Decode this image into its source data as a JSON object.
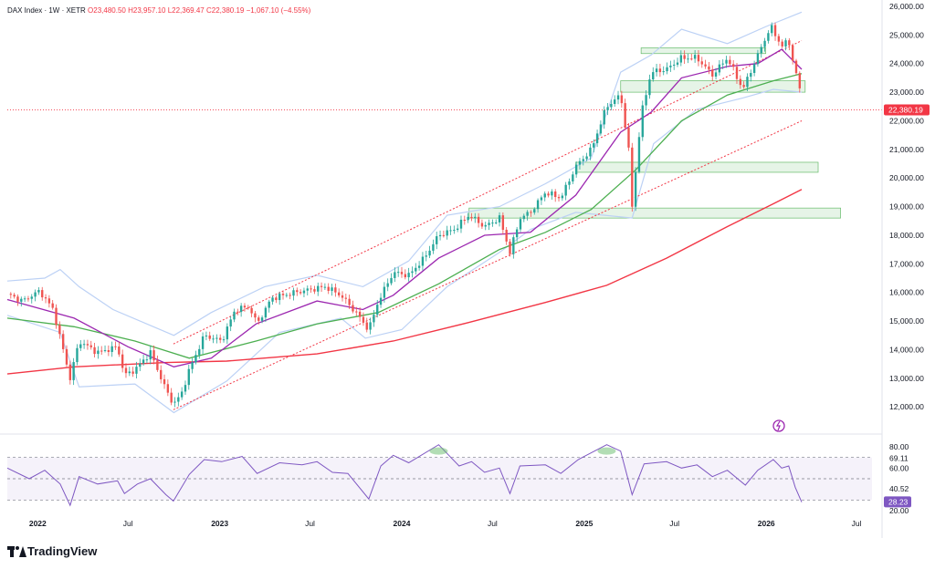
{
  "header": {
    "symbol": "DAX Index",
    "interval": "1W",
    "exchange": "XETR",
    "open": "O23,480.50",
    "high": "H23,957.10",
    "low": "L22,369.47",
    "close": "C22,380.19",
    "change": "−1,067.10 (−4.55%)"
  },
  "brand": {
    "name": "TradingView"
  },
  "colors": {
    "up": "#26a69a",
    "down": "#ef5350",
    "ema_fast": "#9c27b0",
    "ema_mid": "#4caf50",
    "ema_slow": "#f23645",
    "bollinger": "#bcd1f5",
    "channel": "#f23645",
    "zone": "#c8e6c9",
    "rsi_line": "#7e57c2",
    "last_price_bg": "#f23645",
    "rsi_badge_bg": "#7e57c2",
    "alert_icon": "#9c27b0"
  },
  "chart_data": {
    "type": "candlestick",
    "symbol": "DAX Index",
    "interval": "1W",
    "x_range": [
      "2021-11-01",
      "2026-08-01"
    ],
    "x_ticks": [
      {
        "date": "2022-01-01",
        "label": "2022",
        "bold": true
      },
      {
        "date": "2022-07-01",
        "label": "Jul",
        "bold": false
      },
      {
        "date": "2023-01-01",
        "label": "2023",
        "bold": true
      },
      {
        "date": "2023-07-01",
        "label": "Jul",
        "bold": false
      },
      {
        "date": "2024-01-01",
        "label": "2024",
        "bold": true
      },
      {
        "date": "2024-07-01",
        "label": "Jul",
        "bold": false
      },
      {
        "date": "2025-01-01",
        "label": "2025",
        "bold": true
      },
      {
        "date": "2025-07-01",
        "label": "Jul",
        "bold": false
      },
      {
        "date": "2026-01-01",
        "label": "2026",
        "bold": true
      },
      {
        "date": "2026-07-01",
        "label": "Jul",
        "bold": false
      }
    ],
    "price_axis": {
      "range": [
        11400,
        26000
      ],
      "ticks": [
        "26,000.00",
        "25,000.00",
        "24,000.00",
        "23,000.00",
        "22,000.00",
        "21,000.00",
        "20,000.00",
        "19,000.00",
        "18,000.00",
        "17,000.00",
        "16,000.00",
        "15,000.00",
        "14,000.00",
        "13,000.00",
        "12,000.00"
      ],
      "tick_values": [
        26000,
        25000,
        24000,
        23000,
        22000,
        21000,
        20000,
        19000,
        18000,
        17000,
        16000,
        15000,
        14000,
        13000,
        12000
      ],
      "last_price": 22380.19,
      "last_price_label": "22,380.19"
    },
    "close_path": [
      [
        "2021-11-01",
        15950
      ],
      [
        "2021-12-01",
        15700
      ],
      [
        "2022-01-05",
        16050
      ],
      [
        "2022-02-01",
        15400
      ],
      [
        "2022-03-07",
        13000
      ],
      [
        "2022-03-25",
        14300
      ],
      [
        "2022-05-01",
        13900
      ],
      [
        "2022-06-10",
        14100
      ],
      [
        "2022-06-24",
        13100
      ],
      [
        "2022-07-15",
        13300
      ],
      [
        "2022-08-15",
        13900
      ],
      [
        "2022-09-15",
        12600
      ],
      [
        "2022-09-30",
        12100
      ],
      [
        "2022-10-15",
        12400
      ],
      [
        "2022-11-01",
        13300
      ],
      [
        "2022-12-01",
        14500
      ],
      [
        "2023-01-05",
        14300
      ],
      [
        "2023-02-01",
        15400
      ],
      [
        "2023-03-01",
        15500
      ],
      [
        "2023-03-17",
        14900
      ],
      [
        "2023-04-15",
        15800
      ],
      [
        "2023-06-01",
        16000
      ],
      [
        "2023-07-01",
        16100
      ],
      [
        "2023-08-01",
        16200
      ],
      [
        "2023-09-01",
        15900
      ],
      [
        "2023-10-01",
        15300
      ],
      [
        "2023-10-27",
        14700
      ],
      [
        "2023-11-15",
        15700
      ],
      [
        "2023-12-15",
        16700
      ],
      [
        "2024-01-15",
        16600
      ],
      [
        "2024-02-15",
        17200
      ],
      [
        "2024-03-15",
        18000
      ],
      [
        "2024-04-15",
        18200
      ],
      [
        "2024-05-15",
        18700
      ],
      [
        "2024-06-15",
        18300
      ],
      [
        "2024-07-15",
        18600
      ],
      [
        "2024-08-05",
        17400
      ],
      [
        "2024-08-25",
        18600
      ],
      [
        "2024-09-15",
        18800
      ],
      [
        "2024-10-15",
        19500
      ],
      [
        "2024-11-15",
        19300
      ],
      [
        "2024-12-15",
        20400
      ],
      [
        "2025-01-15",
        21000
      ],
      [
        "2025-02-15",
        22500
      ],
      [
        "2025-03-15",
        22900
      ],
      [
        "2025-04-04",
        20500
      ],
      [
        "2025-04-07",
        19000
      ],
      [
        "2025-04-25",
        22200
      ],
      [
        "2025-05-15",
        23700
      ],
      [
        "2025-06-15",
        23800
      ],
      [
        "2025-07-15",
        24200
      ],
      [
        "2025-08-15",
        24200
      ],
      [
        "2025-09-15",
        23600
      ],
      [
        "2025-10-15",
        24200
      ],
      [
        "2025-11-15",
        23100
      ],
      [
        "2025-12-15",
        24300
      ],
      [
        "2026-01-10",
        25300
      ],
      [
        "2026-02-01",
        24600
      ],
      [
        "2026-02-15",
        24800
      ],
      [
        "2026-02-28",
        23700
      ],
      [
        "2026-03-07",
        23450
      ],
      [
        "2026-03-13",
        22380
      ]
    ],
    "indicators": {
      "ema_fast": [
        [
          "2021-11-01",
          15750
        ],
        [
          "2022-03-15",
          15100
        ],
        [
          "2022-07-01",
          14100
        ],
        [
          "2022-10-01",
          13400
        ],
        [
          "2022-12-15",
          13700
        ],
        [
          "2023-03-15",
          14900
        ],
        [
          "2023-07-15",
          15700
        ],
        [
          "2023-10-15",
          15400
        ],
        [
          "2023-12-15",
          15900
        ],
        [
          "2024-03-15",
          17200
        ],
        [
          "2024-06-15",
          18000
        ],
        [
          "2024-09-15",
          18100
        ],
        [
          "2024-12-15",
          19400
        ],
        [
          "2025-03-15",
          21600
        ],
        [
          "2025-05-15",
          22300
        ],
        [
          "2025-07-15",
          23500
        ],
        [
          "2025-10-15",
          23900
        ],
        [
          "2025-12-15",
          24000
        ],
        [
          "2026-02-01",
          24500
        ],
        [
          "2026-03-13",
          23800
        ]
      ],
      "ema_mid": [
        [
          "2021-11-01",
          15100
        ],
        [
          "2022-03-15",
          14800
        ],
        [
          "2022-07-15",
          14300
        ],
        [
          "2022-11-01",
          13700
        ],
        [
          "2023-03-15",
          14300
        ],
        [
          "2023-07-15",
          14900
        ],
        [
          "2023-11-15",
          15300
        ],
        [
          "2024-03-15",
          16300
        ],
        [
          "2024-07-15",
          17500
        ],
        [
          "2024-10-15",
          18100
        ],
        [
          "2025-01-15",
          18900
        ],
        [
          "2025-04-15",
          20300
        ],
        [
          "2025-07-15",
          22000
        ],
        [
          "2025-10-15",
          22900
        ],
        [
          "2026-01-15",
          23400
        ],
        [
          "2026-03-13",
          23650
        ]
      ],
      "ema_slow": [
        [
          "2021-11-01",
          13150
        ],
        [
          "2022-03-15",
          13400
        ],
        [
          "2022-09-15",
          13550
        ],
        [
          "2023-01-15",
          13600
        ],
        [
          "2023-07-15",
          13850
        ],
        [
          "2023-12-15",
          14300
        ],
        [
          "2024-05-15",
          14950
        ],
        [
          "2024-10-15",
          15650
        ],
        [
          "2025-02-15",
          16250
        ],
        [
          "2025-06-15",
          17200
        ],
        [
          "2025-10-15",
          18300
        ],
        [
          "2026-01-15",
          19100
        ],
        [
          "2026-03-13",
          19600
        ]
      ],
      "bollinger_upper": [
        [
          "2021-11-01",
          16400
        ],
        [
          "2022-01-15",
          16500
        ],
        [
          "2022-02-15",
          16800
        ],
        [
          "2022-03-25",
          16200
        ],
        [
          "2022-06-01",
          15400
        ],
        [
          "2022-10-01",
          14500
        ],
        [
          "2022-12-15",
          15300
        ],
        [
          "2023-04-01",
          16200
        ],
        [
          "2023-07-15",
          16600
        ],
        [
          "2023-10-15",
          16200
        ],
        [
          "2024-01-15",
          17100
        ],
        [
          "2024-04-01",
          18700
        ],
        [
          "2024-07-15",
          19000
        ],
        [
          "2024-10-15",
          19800
        ],
        [
          "2025-01-15",
          20700
        ],
        [
          "2025-03-15",
          23700
        ],
        [
          "2025-05-15",
          24300
        ],
        [
          "2025-07-15",
          25200
        ],
        [
          "2025-10-15",
          24700
        ],
        [
          "2026-01-01",
          25300
        ],
        [
          "2026-03-13",
          25800
        ]
      ],
      "bollinger_lower": [
        [
          "2021-11-01",
          15200
        ],
        [
          "2022-02-15",
          14600
        ],
        [
          "2022-03-25",
          12700
        ],
        [
          "2022-07-15",
          12800
        ],
        [
          "2022-10-01",
          11800
        ],
        [
          "2023-01-15",
          12900
        ],
        [
          "2023-05-01",
          14600
        ],
        [
          "2023-09-01",
          15100
        ],
        [
          "2023-10-20",
          14400
        ],
        [
          "2024-01-01",
          14700
        ],
        [
          "2024-04-01",
          16200
        ],
        [
          "2024-07-15",
          17400
        ],
        [
          "2024-09-15",
          18200
        ],
        [
          "2024-12-15",
          18800
        ],
        [
          "2025-04-07",
          18600
        ],
        [
          "2025-05-20",
          21200
        ],
        [
          "2025-08-15",
          22400
        ],
        [
          "2025-11-15",
          22800
        ],
        [
          "2026-01-15",
          23100
        ],
        [
          "2026-03-13",
          23000
        ]
      ],
      "channel_upper": [
        [
          "2022-09-30",
          14200
        ],
        [
          "2026-03-13",
          24800
        ]
      ],
      "channel_lower": [
        [
          "2022-09-30",
          11900
        ],
        [
          "2026-03-13",
          22000
        ]
      ]
    },
    "zones": [
      {
        "from": "2025-04-25",
        "to": "2025-12-31",
        "low": 24350,
        "high": 24550
      },
      {
        "from": "2025-03-15",
        "to": "2026-03-20",
        "low": 23000,
        "high": 23400
      },
      {
        "from": "2024-12-15",
        "to": "2026-04-15",
        "low": 20200,
        "high": 20550
      },
      {
        "from": "2024-05-15",
        "to": "2026-05-30",
        "low": 18600,
        "high": 18950
      }
    ],
    "rsi": {
      "range": [
        20,
        80
      ],
      "ticks": [
        {
          "value": 80,
          "label": "80.00"
        },
        {
          "value": 69.11,
          "label": "69.11"
        },
        {
          "value": 60,
          "label": "60.00"
        },
        {
          "value": 40.52,
          "label": "40.52"
        },
        {
          "value": 20,
          "label": "20.00"
        }
      ],
      "last": 28.23,
      "last_label": "28.23",
      "overbought": 70,
      "oversold": 30,
      "path": [
        [
          "2021-11-01",
          60
        ],
        [
          "2021-12-15",
          50
        ],
        [
          "2022-01-15",
          58
        ],
        [
          "2022-02-15",
          45
        ],
        [
          "2022-03-07",
          25
        ],
        [
          "2022-03-25",
          52
        ],
        [
          "2022-05-01",
          45
        ],
        [
          "2022-06-10",
          48
        ],
        [
          "2022-06-24",
          36
        ],
        [
          "2022-07-20",
          45
        ],
        [
          "2022-08-15",
          50
        ],
        [
          "2022-09-15",
          35
        ],
        [
          "2022-09-30",
          29
        ],
        [
          "2022-11-01",
          54
        ],
        [
          "2022-12-01",
          68
        ],
        [
          "2023-01-05",
          66
        ],
        [
          "2023-02-15",
          71
        ],
        [
          "2023-03-17",
          55
        ],
        [
          "2023-05-01",
          65
        ],
        [
          "2023-06-15",
          63
        ],
        [
          "2023-07-15",
          66
        ],
        [
          "2023-08-15",
          56
        ],
        [
          "2023-09-15",
          55
        ],
        [
          "2023-10-27",
          31
        ],
        [
          "2023-11-20",
          62
        ],
        [
          "2023-12-15",
          72
        ],
        [
          "2024-01-15",
          65
        ],
        [
          "2024-03-15",
          82
        ],
        [
          "2024-04-25",
          62
        ],
        [
          "2024-05-20",
          66
        ],
        [
          "2024-06-15",
          56
        ],
        [
          "2024-07-15",
          60
        ],
        [
          "2024-08-05",
          36
        ],
        [
          "2024-08-25",
          62
        ],
        [
          "2024-10-15",
          63
        ],
        [
          "2024-11-15",
          55
        ],
        [
          "2024-12-20",
          68
        ],
        [
          "2025-02-15",
          82
        ],
        [
          "2025-03-15",
          76
        ],
        [
          "2025-04-07",
          35
        ],
        [
          "2025-05-01",
          64
        ],
        [
          "2025-06-15",
          66
        ],
        [
          "2025-07-15",
          60
        ],
        [
          "2025-08-15",
          63
        ],
        [
          "2025-09-15",
          52
        ],
        [
          "2025-10-15",
          58
        ],
        [
          "2025-11-20",
          44
        ],
        [
          "2025-12-15",
          58
        ],
        [
          "2026-01-15",
          68
        ],
        [
          "2026-02-01",
          60
        ],
        [
          "2026-02-15",
          62
        ],
        [
          "2026-02-28",
          42
        ],
        [
          "2026-03-13",
          28
        ]
      ]
    }
  }
}
